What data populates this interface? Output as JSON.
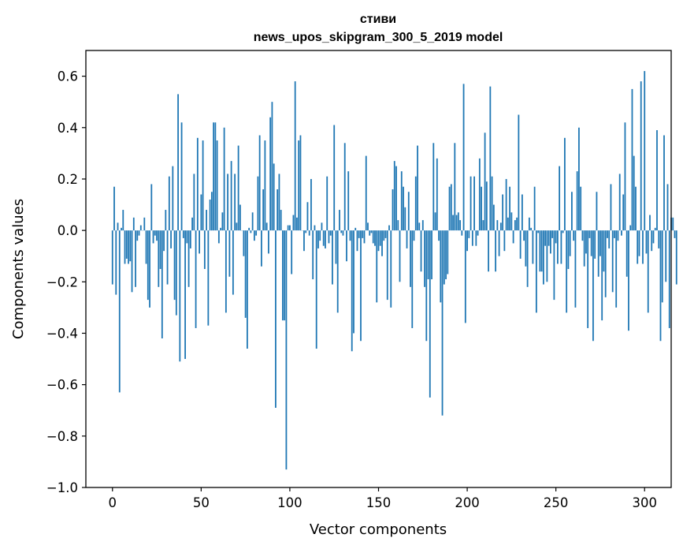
{
  "chart_data": {
    "type": "bar",
    "title": "стиви",
    "subtitle": "news_upos_skipgram_300_5_2019 model",
    "xlabel": "Vector components",
    "ylabel": "Components values",
    "xlim": [
      -15,
      315
    ],
    "ylim": [
      -1.0,
      0.7
    ],
    "xticks": [
      0,
      50,
      100,
      150,
      200,
      250,
      300
    ],
    "yticks": [
      0.6,
      0.4,
      0.2,
      0.0,
      -0.2,
      -0.4,
      -0.6,
      -0.8,
      -1.0
    ],
    "ytick_labels": [
      "0.6",
      "0.4",
      "0.2",
      "0.0",
      "−0.2",
      "−0.4",
      "−0.6",
      "−0.8",
      "−1.0"
    ],
    "bar_color": "#1f77b4",
    "grid": false,
    "values": [
      -0.21,
      0.17,
      -0.25,
      0.03,
      -0.63,
      0.01,
      0.08,
      -0.13,
      -0.11,
      -0.13,
      -0.12,
      -0.24,
      0.05,
      -0.22,
      -0.04,
      -0.02,
      0.02,
      0.0,
      0.05,
      -0.13,
      -0.27,
      -0.3,
      0.18,
      -0.05,
      -0.02,
      -0.04,
      -0.22,
      -0.15,
      -0.42,
      -0.08,
      0.08,
      -0.21,
      0.21,
      -0.07,
      0.25,
      -0.27,
      -0.33,
      0.53,
      -0.51,
      0.42,
      -0.03,
      -0.5,
      -0.05,
      -0.22,
      -0.07,
      0.05,
      0.22,
      -0.38,
      0.36,
      -0.09,
      0.14,
      0.35,
      -0.15,
      0.08,
      -0.37,
      0.12,
      0.15,
      0.42,
      0.42,
      0.35,
      -0.05,
      0.01,
      0.07,
      0.4,
      -0.32,
      0.22,
      -0.18,
      0.27,
      -0.25,
      0.22,
      0.03,
      0.33,
      0.1,
      0.0,
      -0.1,
      -0.34,
      -0.46,
      0.01,
      -0.01,
      0.07,
      -0.04,
      -0.02,
      0.21,
      0.37,
      -0.14,
      0.16,
      0.35,
      0.03,
      -0.09,
      0.44,
      0.5,
      0.26,
      -0.69,
      0.16,
      0.22,
      0.08,
      -0.35,
      -0.35,
      -0.93,
      0.02,
      0.02,
      -0.17,
      0.06,
      0.58,
      0.05,
      0.35,
      0.37,
      0.0,
      -0.08,
      -0.01,
      0.11,
      -0.02,
      0.2,
      -0.19,
      0.02,
      -0.46,
      -0.07,
      -0.04,
      0.03,
      -0.06,
      -0.07,
      0.21,
      -0.05,
      -0.02,
      -0.21,
      0.41,
      -0.13,
      -0.32,
      0.08,
      -0.01,
      -0.02,
      0.34,
      -0.12,
      0.23,
      -0.04,
      -0.47,
      -0.4,
      0.01,
      -0.08,
      -0.03,
      -0.43,
      -0.03,
      -0.05,
      0.29,
      0.03,
      -0.02,
      -0.01,
      -0.05,
      -0.06,
      -0.28,
      -0.08,
      -0.06,
      -0.1,
      -0.04,
      -0.03,
      -0.27,
      0.02,
      -0.3,
      0.16,
      0.27,
      0.25,
      0.04,
      -0.2,
      0.23,
      0.17,
      0.09,
      -0.07,
      0.15,
      -0.22,
      -0.38,
      -0.04,
      0.21,
      0.33,
      0.03,
      -0.16,
      0.04,
      -0.22,
      -0.43,
      -0.19,
      -0.65,
      -0.19,
      0.34,
      0.07,
      0.28,
      -0.04,
      -0.28,
      -0.72,
      -0.21,
      -0.19,
      -0.17,
      0.17,
      0.18,
      0.06,
      0.34,
      0.06,
      0.07,
      0.04,
      -0.02,
      0.57,
      -0.36,
      -0.08,
      -0.03,
      0.21,
      -0.06,
      0.21,
      -0.06,
      -0.02,
      0.28,
      0.17,
      0.04,
      0.38,
      0.19,
      -0.16,
      0.56,
      0.21,
      0.1,
      -0.16,
      0.04,
      -0.1,
      0.03,
      0.14,
      -0.08,
      0.2,
      0.05,
      0.17,
      0.07,
      -0.05,
      0.04,
      0.05,
      0.45,
      -0.11,
      0.14,
      -0.04,
      -0.14,
      -0.22,
      0.05,
      0.01,
      -0.13,
      0.17,
      -0.32,
      -0.01,
      -0.16,
      -0.16,
      -0.21,
      -0.06,
      -0.2,
      -0.06,
      -0.09,
      -0.03,
      -0.27,
      -0.05,
      -0.13,
      0.25,
      -0.13,
      -0.01,
      0.36,
      -0.32,
      -0.15,
      -0.1,
      0.15,
      -0.04,
      -0.3,
      0.23,
      0.4,
      0.17,
      -0.04,
      -0.14,
      -0.09,
      -0.38,
      -0.03,
      -0.1,
      -0.43,
      -0.11,
      0.15,
      -0.18,
      -0.1,
      -0.35,
      -0.16,
      -0.26,
      -0.03,
      -0.07,
      0.18,
      -0.24,
      -0.03,
      -0.3,
      -0.04,
      0.22,
      -0.02,
      0.14,
      0.42,
      -0.18,
      -0.39,
      0.02,
      0.55,
      0.29,
      0.17,
      -0.13,
      -0.1,
      0.58,
      -0.13,
      0.62,
      -0.09,
      -0.32,
      0.06,
      -0.08,
      -0.05,
      0.01,
      0.39,
      -0.07,
      -0.43,
      -0.28,
      0.37,
      -0.2,
      0.18,
      -0.38,
      0.05,
      0.05,
      -0.03,
      -0.21
    ]
  }
}
